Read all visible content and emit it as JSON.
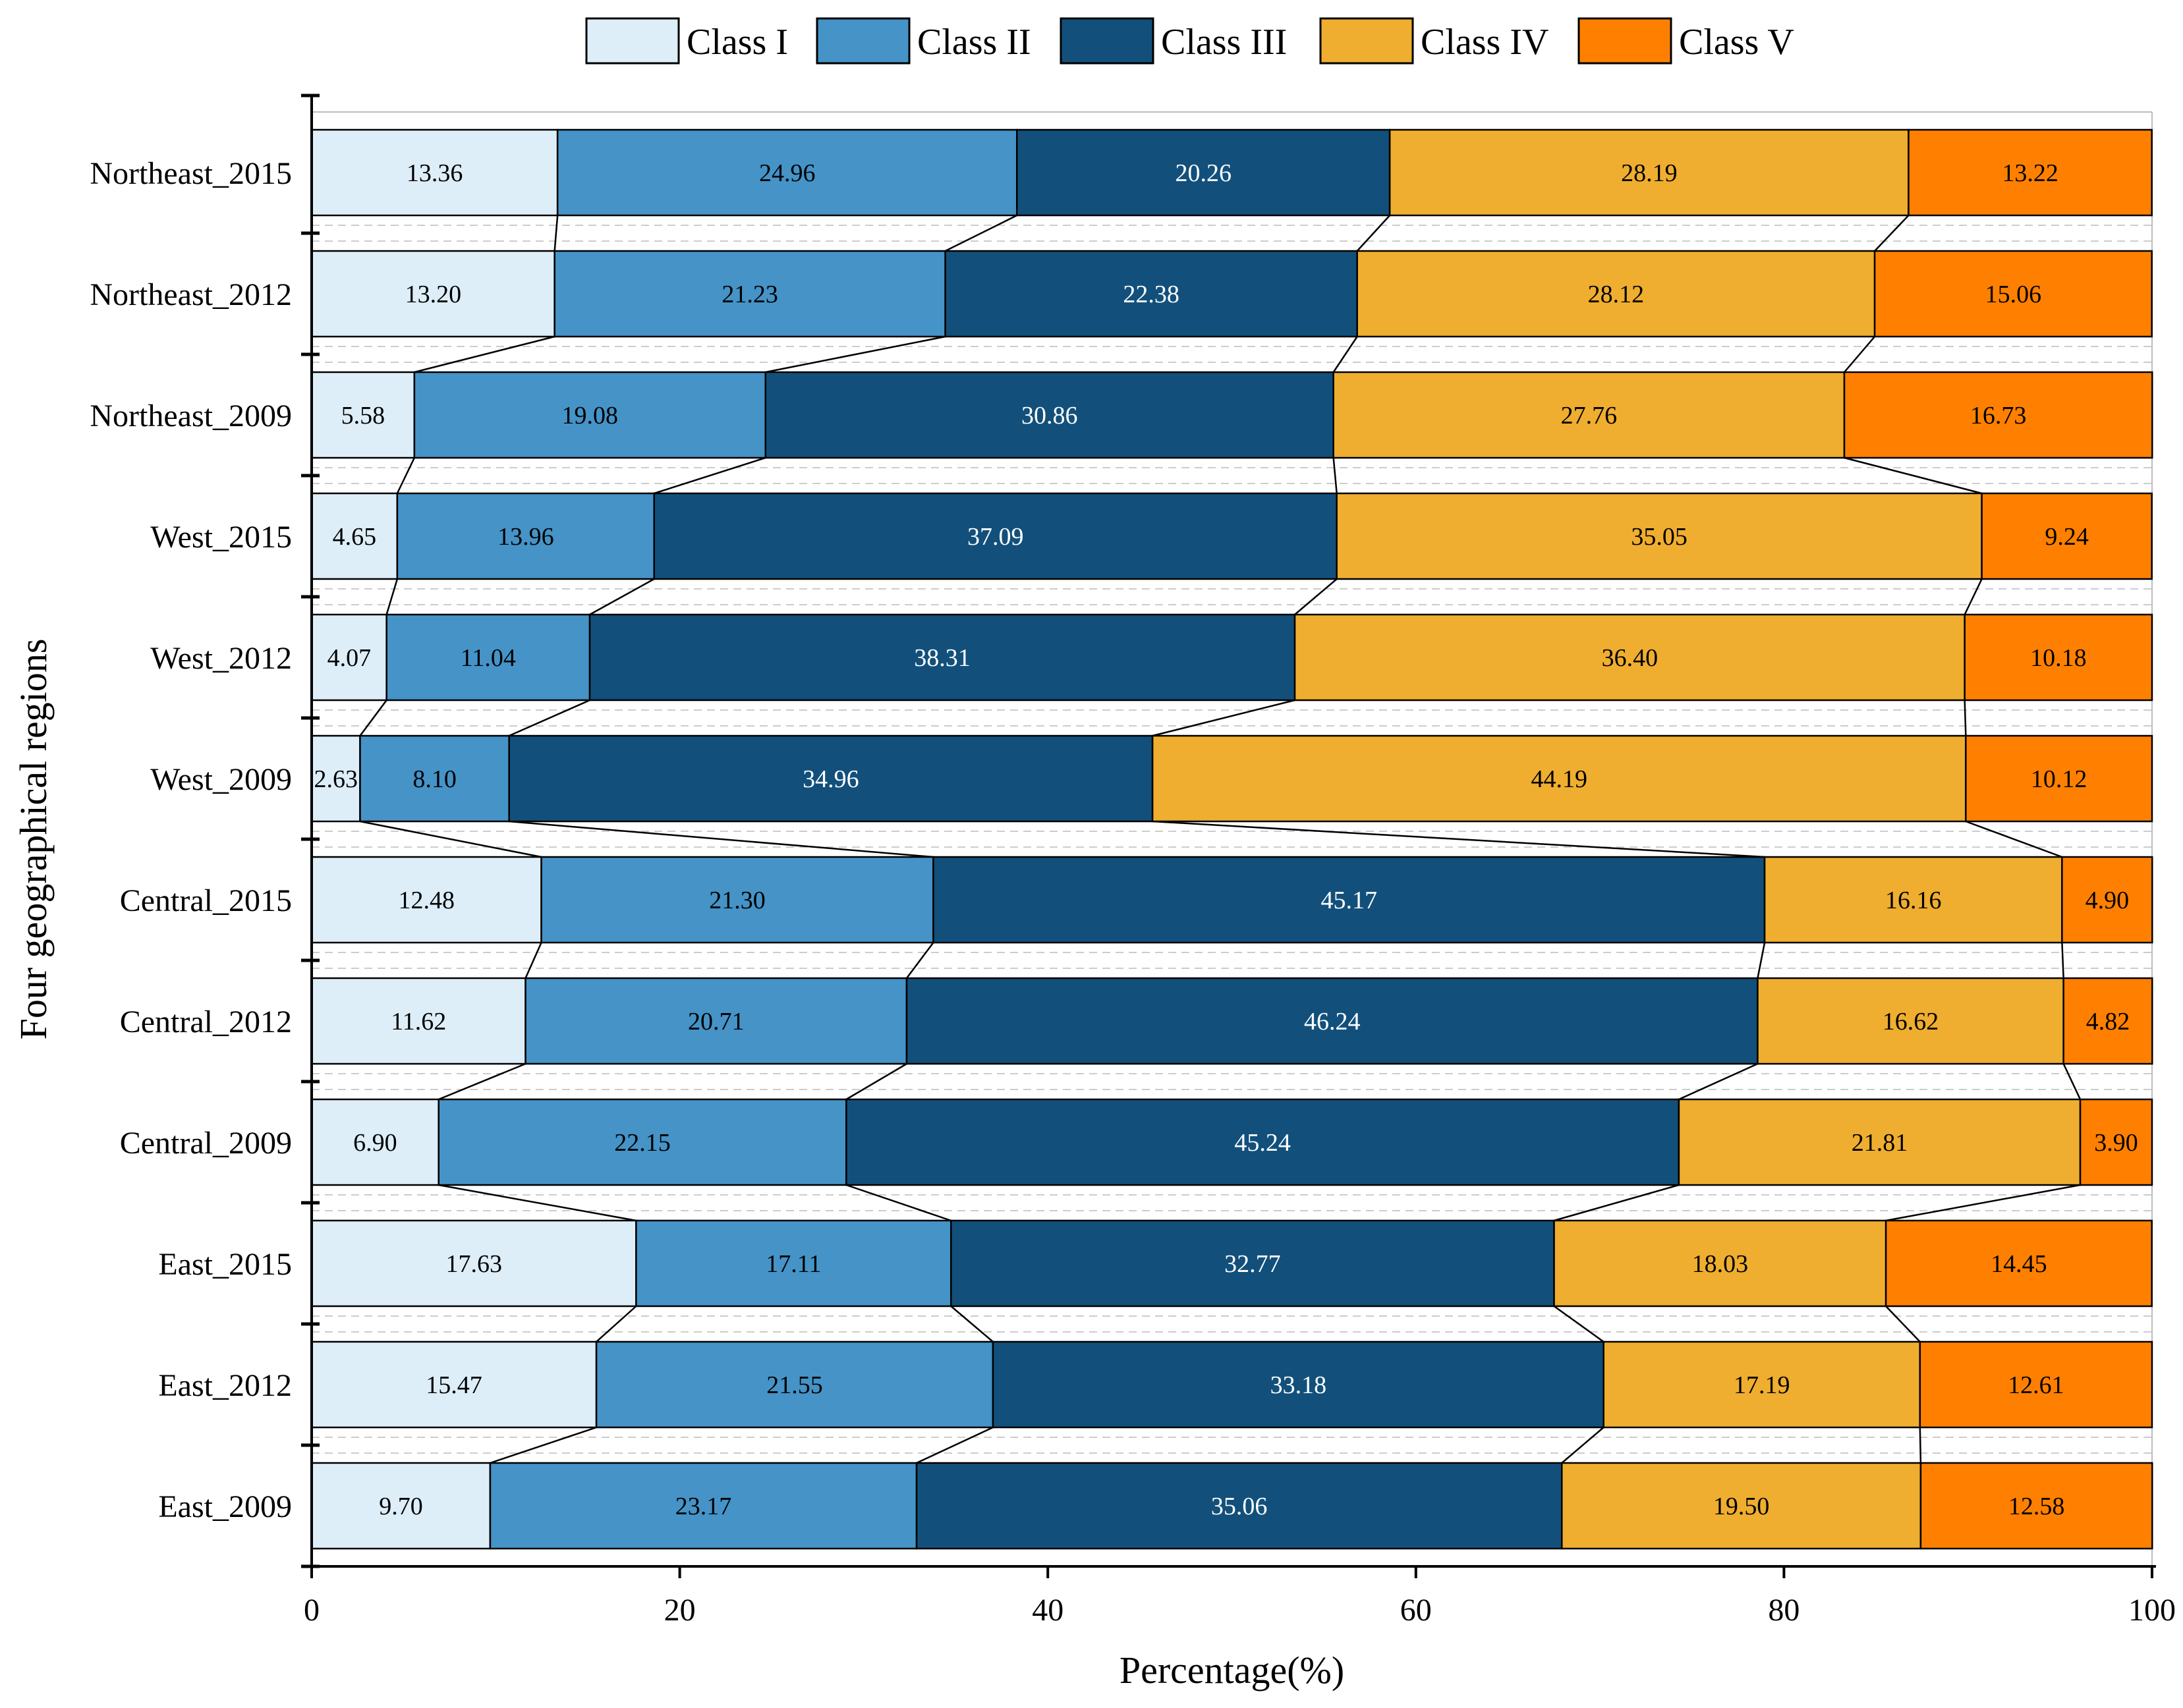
{
  "chart_data": {
    "type": "bar",
    "orientation": "horizontal-stacked-100",
    "title": "",
    "xlabel": "Percentage(%)",
    "ylabel": "Four geographical regions",
    "xlim": [
      0,
      100
    ],
    "xticks": [
      "0",
      "20",
      "40",
      "60",
      "80",
      "100"
    ],
    "legend_position": "top",
    "categories": [
      "Northeast_2015",
      "Northeast_2012",
      "Northeast_2009",
      "West_2015",
      "West_2012",
      "West_2009",
      "Central_2015",
      "Central_2012",
      "Central_2009",
      "East_2015",
      "East_2012",
      "East_2009"
    ],
    "series": [
      {
        "name": "Class I",
        "color": "#ddeef8",
        "label_color": "#000000",
        "values": [
          13.36,
          13.2,
          5.58,
          4.65,
          4.07,
          2.63,
          12.48,
          11.62,
          6.9,
          17.63,
          15.47,
          9.7
        ],
        "labels": [
          "13.36",
          "13.20",
          "5.58",
          "4.65",
          "4.07",
          "2.63",
          "12.48",
          "11.62",
          "6.90",
          "17.63",
          "15.47",
          "9.70"
        ]
      },
      {
        "name": "Class II",
        "color": "#4593c7",
        "label_color": "#000000",
        "values": [
          24.96,
          21.23,
          19.08,
          13.96,
          11.04,
          8.1,
          21.3,
          20.71,
          22.15,
          17.11,
          21.55,
          23.17
        ],
        "labels": [
          "24.96",
          "21.23",
          "19.08",
          "13.96",
          "11.04",
          "8.10",
          "21.30",
          "20.71",
          "22.15",
          "17.11",
          "21.55",
          "23.17"
        ]
      },
      {
        "name": "Class III",
        "color": "#12507b",
        "label_color": "#ffffff",
        "values": [
          20.26,
          22.38,
          30.86,
          37.09,
          38.31,
          34.96,
          45.17,
          46.24,
          45.24,
          32.77,
          33.18,
          35.06
        ],
        "labels": [
          "20.26",
          "22.38",
          "30.86",
          "37.09",
          "38.31",
          "34.96",
          "45.17",
          "46.24",
          "45.24",
          "32.77",
          "33.18",
          "35.06"
        ]
      },
      {
        "name": "Class IV",
        "color": "#efae2f",
        "label_color": "#000000",
        "values": [
          28.19,
          28.12,
          27.76,
          35.05,
          36.4,
          44.19,
          16.16,
          16.62,
          21.81,
          18.03,
          17.19,
          19.5
        ],
        "labels": [
          "28.19",
          "28.12",
          "27.76",
          "35.05",
          "36.40",
          "44.19",
          "16.16",
          "16.62",
          "21.81",
          "18.03",
          "17.19",
          "19.50"
        ]
      },
      {
        "name": "Class V",
        "color": "#ff8000",
        "label_color": "#000000",
        "values": [
          13.22,
          15.06,
          16.73,
          9.24,
          10.18,
          10.12,
          4.9,
          4.82,
          3.9,
          14.45,
          12.61,
          12.58
        ],
        "labels": [
          "13.22",
          "15.06",
          "16.73",
          "9.24",
          "10.18",
          "10.12",
          "4.90",
          "4.82",
          "3.90",
          "14.45",
          "12.61",
          "12.58"
        ]
      }
    ]
  }
}
